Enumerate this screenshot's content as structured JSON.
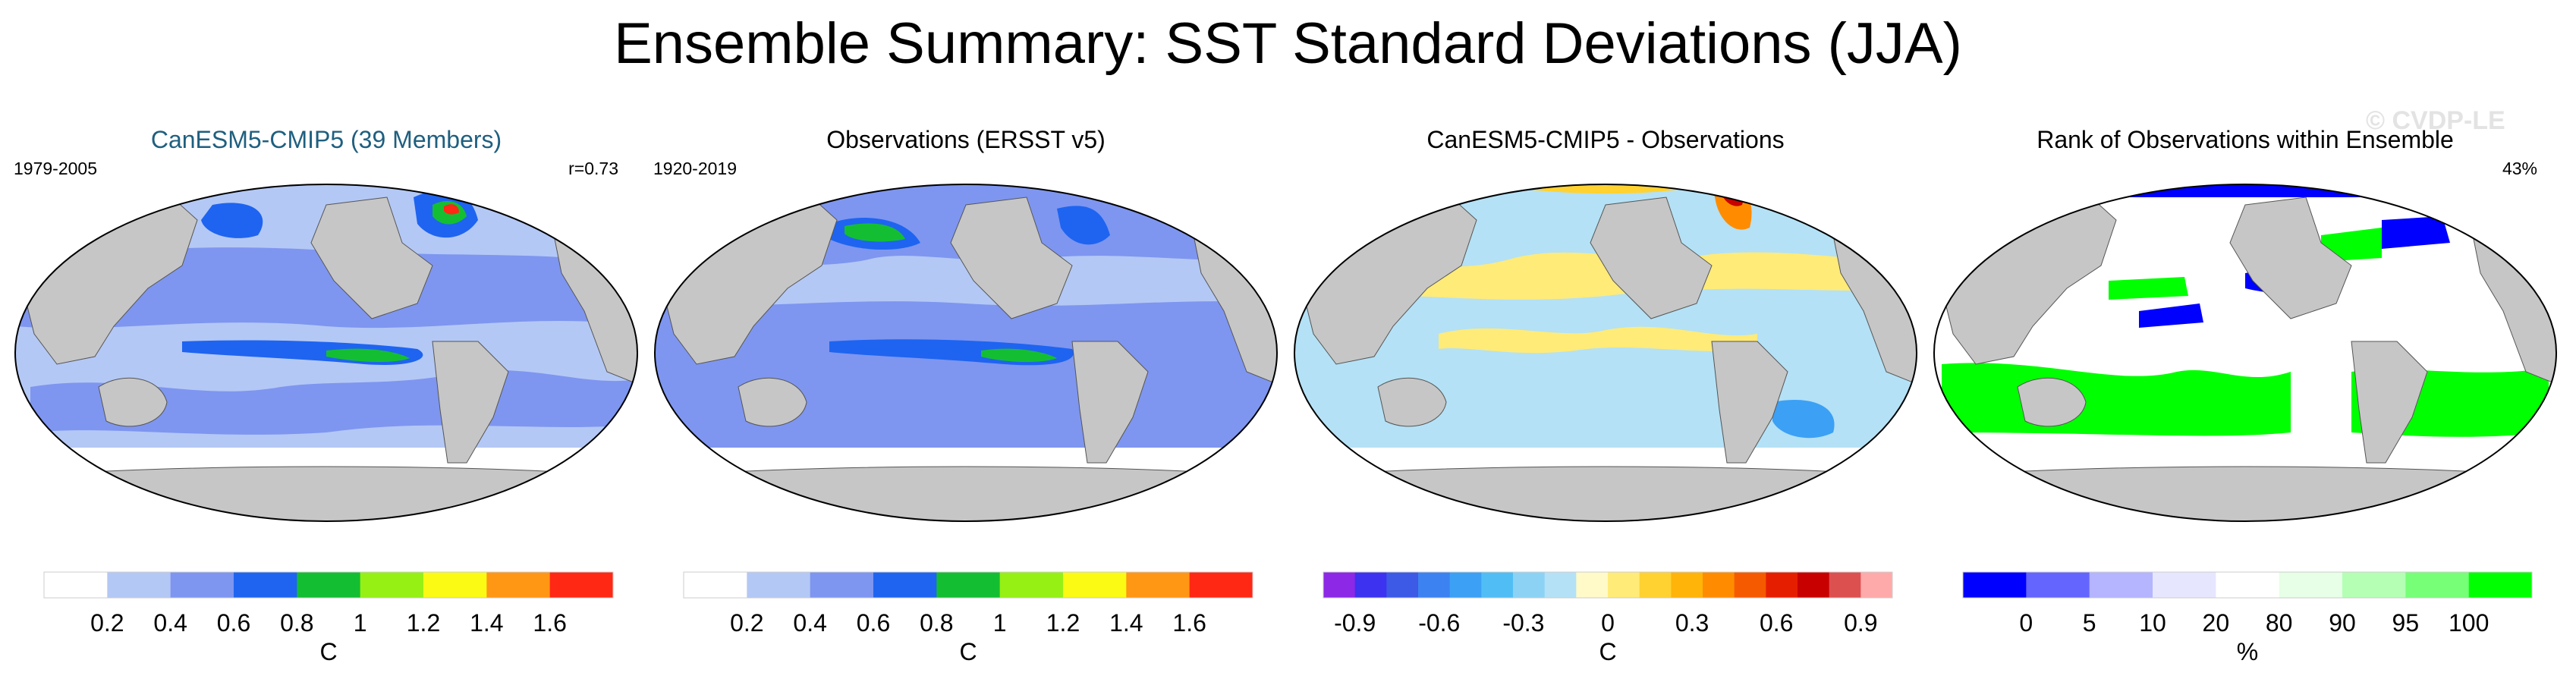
{
  "title": "Ensemble Summary: SST Standard Deviations (JJA)",
  "watermark": "© CVDP-LE",
  "colors": {
    "land": "#c6c6c6",
    "ocean_white": "#ffffff",
    "title_highlight": "#1f5f7f"
  },
  "panels": [
    {
      "id": "ensemble",
      "title": "CanESM5-CMIP5 (39 Members)",
      "title_color": "#1f5f7f",
      "left_label": "1979-2005",
      "right_label": "r=0.73"
    },
    {
      "id": "observations",
      "title": "Observations (ERSST v5)",
      "title_color": "#000000",
      "left_label": "1920-2019",
      "right_label": ""
    },
    {
      "id": "difference",
      "title": "CanESM5-CMIP5 - Observations",
      "title_color": "#000000",
      "left_label": "",
      "right_label": ""
    },
    {
      "id": "rank",
      "title": "Rank of Observations within Ensemble",
      "title_color": "#000000",
      "left_label": "",
      "right_label": "43%"
    }
  ],
  "colorbars": [
    {
      "unit": "C",
      "colors": [
        "#ffffff",
        "#b4c8f5",
        "#7e96f0",
        "#1e64f0",
        "#14be32",
        "#96f014",
        "#fafa14",
        "#ff9614",
        "#ff2814"
      ],
      "tick_labels": [
        "0.2",
        "0.4",
        "0.6",
        "0.8",
        "1",
        "1.2",
        "1.4",
        "1.6"
      ]
    },
    {
      "unit": "C",
      "colors": [
        "#ffffff",
        "#b4c8f5",
        "#7e96f0",
        "#1e64f0",
        "#14be32",
        "#96f014",
        "#fafa14",
        "#ff9614",
        "#ff2814"
      ],
      "tick_labels": [
        "0.2",
        "0.4",
        "0.6",
        "0.8",
        "1",
        "1.2",
        "1.4",
        "1.6"
      ]
    },
    {
      "unit": "C",
      "colors": [
        "#8c28e6",
        "#3c32f0",
        "#3c5ae6",
        "#3c82f0",
        "#3ca0f5",
        "#50bef5",
        "#8cd2f5",
        "#b4e1f5",
        "#fffac8",
        "#ffeb78",
        "#ffd232",
        "#ffb40a",
        "#ff8c00",
        "#f55a00",
        "#e61e00",
        "#c80000",
        "#dc5050",
        "#ffaaaa"
      ],
      "tick_labels": [
        "-0.9",
        "-0.6",
        "-0.3",
        "0",
        "0.3",
        "0.6",
        "0.9"
      ]
    },
    {
      "unit": "%",
      "colors": [
        "#0000ff",
        "#6464ff",
        "#b4b4ff",
        "#e6e6ff",
        "#ffffff",
        "#e6ffe6",
        "#b4ffb4",
        "#78ff78",
        "#00ff00"
      ],
      "tick_labels": [
        "0",
        "5",
        "10",
        "20",
        "80",
        "90",
        "95",
        "100"
      ]
    }
  ],
  "chart_data": [
    {
      "type": "heatmap",
      "title": "CanESM5-CMIP5 (39 Members)",
      "period": "1979-2005",
      "pattern_correlation": "r=0.73",
      "unit": "C",
      "levels": [
        0.2,
        0.4,
        0.6,
        0.8,
        1.0,
        1.2,
        1.4,
        1.6
      ]
    },
    {
      "type": "heatmap",
      "title": "Observations (ERSST v5)",
      "period": "1920-2019",
      "unit": "C",
      "levels": [
        0.2,
        0.4,
        0.6,
        0.8,
        1.0,
        1.2,
        1.4,
        1.6
      ]
    },
    {
      "type": "heatmap",
      "title": "CanESM5-CMIP5 - Observations",
      "unit": "C",
      "levels": [
        -0.9,
        -0.6,
        -0.3,
        0,
        0.3,
        0.6,
        0.9
      ]
    },
    {
      "type": "heatmap",
      "title": "Rank of Observations within Ensemble",
      "unit": "%",
      "summary_value": "43%",
      "levels": [
        0,
        5,
        10,
        20,
        80,
        90,
        95,
        100
      ]
    }
  ]
}
